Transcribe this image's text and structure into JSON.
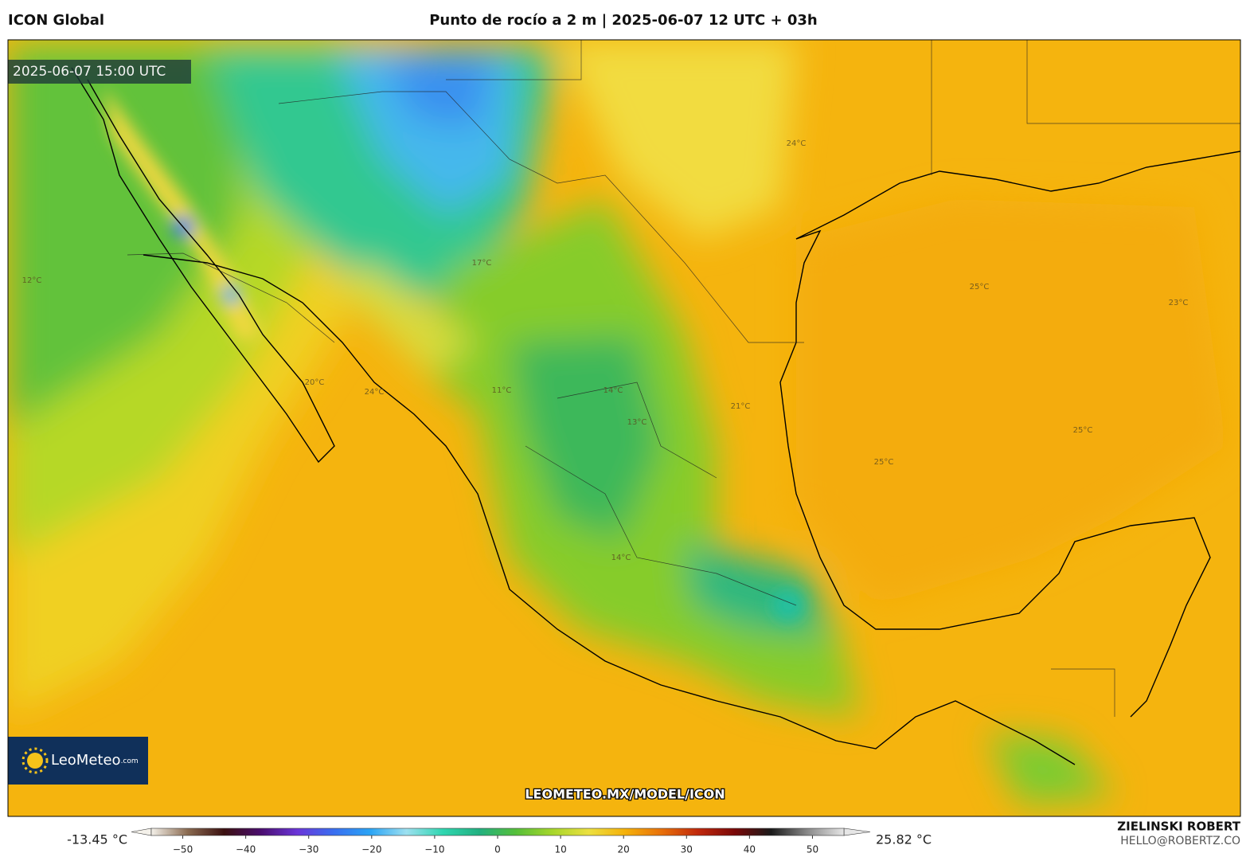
{
  "header": {
    "model": "ICON Global",
    "title": "Punto de rocío a 2 m | 2025-06-07 12 UTC + 03h"
  },
  "map": {
    "timestamp": "2025-06-07 15:00 UTC",
    "watermark": "LEOMETEO.MX/MODEL/ICON",
    "logo": {
      "name": "LeoMeteo",
      "suffix": ".com"
    },
    "contour_labels": [
      "24°C",
      "25°C",
      "24°C",
      "23°C",
      "14°C",
      "11°C",
      "14°C",
      "13°C",
      "20°C",
      "12°C",
      "17°C",
      "25°C",
      "25°C",
      "21°C"
    ]
  },
  "colorbar": {
    "min_label": "-13.45 °C",
    "max_label": "25.82 °C",
    "lim": [
      -55,
      55
    ],
    "ticks": [
      {
        "value": -50,
        "label": "−50"
      },
      {
        "value": -40,
        "label": "−40"
      },
      {
        "value": -30,
        "label": "−30"
      },
      {
        "value": -20,
        "label": "−20"
      },
      {
        "value": -10,
        "label": "−10"
      },
      0,
      10,
      20,
      30,
      40,
      50
    ],
    "colors": [
      "#f4f1ea",
      "#8a6a50",
      "#3b1010",
      "#4a0d6e",
      "#6a35d8",
      "#3a6ef0",
      "#2aa4f5",
      "#9de0f0",
      "#2fd6b0",
      "#22b080",
      "#55bf3a",
      "#a6d62b",
      "#ece040",
      "#f5b10a",
      "#e8700a",
      "#c0280c",
      "#7a0808",
      "#1a1a1a",
      "#8a8a8a",
      "#e6e6e6"
    ]
  },
  "credit": {
    "author": "ZIELINSKI ROBERT",
    "email": "HELLO@ROBERTZ.CO"
  }
}
